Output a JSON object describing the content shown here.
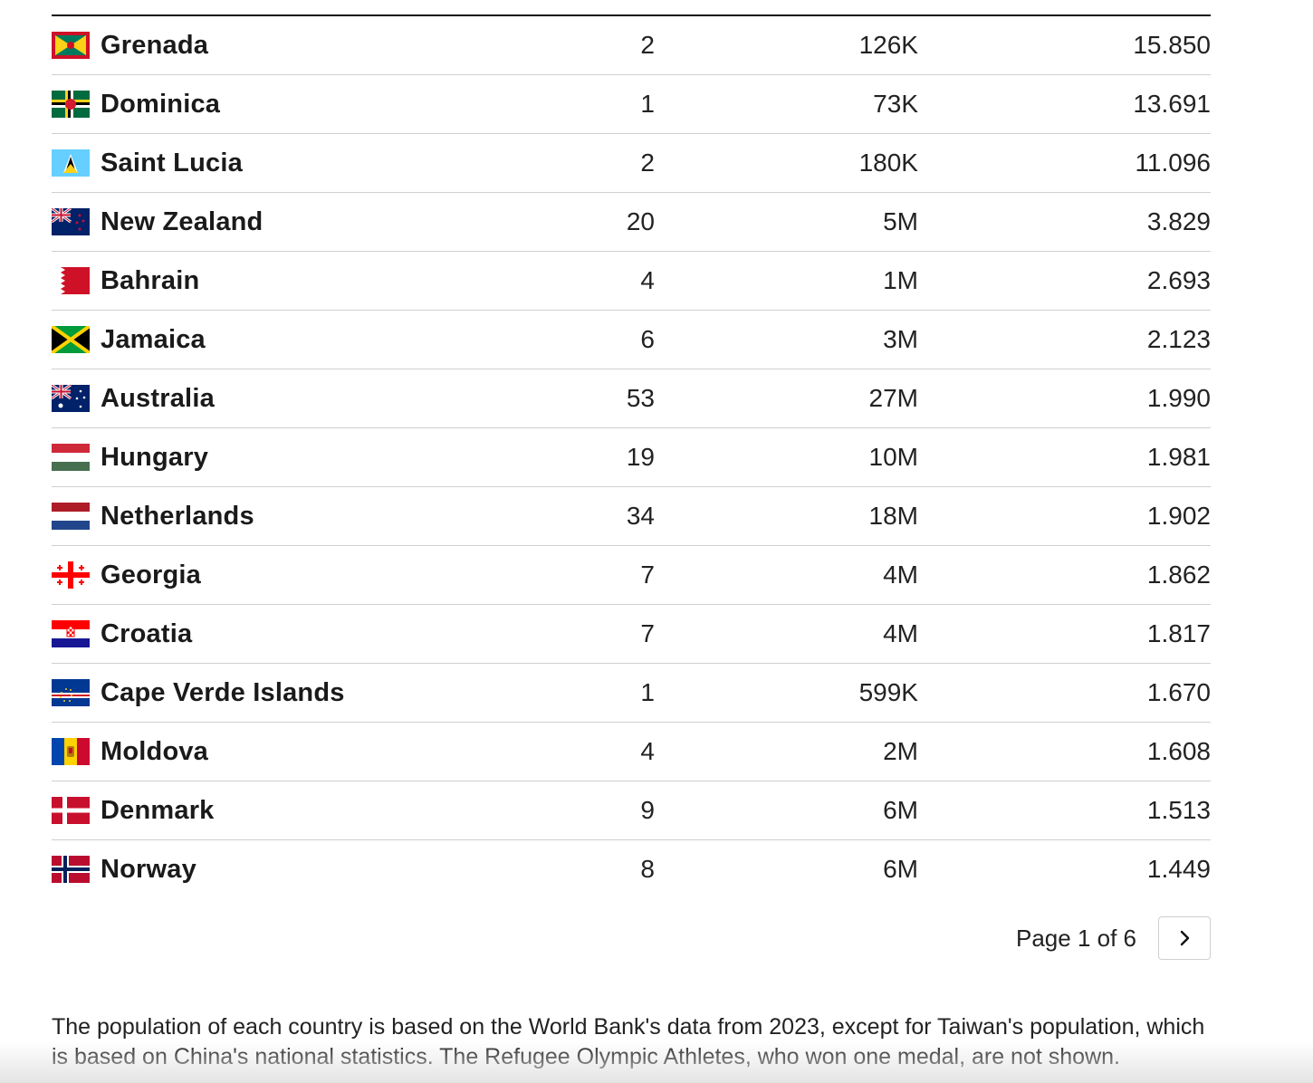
{
  "rows": [
    {
      "country": "Grenada",
      "flag": "grenada-flag-icon",
      "medals": "2",
      "population": "126K",
      "ratio": "15.850"
    },
    {
      "country": "Dominica",
      "flag": "dominica-flag-icon",
      "medals": "1",
      "population": "73K",
      "ratio": "13.691"
    },
    {
      "country": "Saint Lucia",
      "flag": "saint-lucia-flag-icon",
      "medals": "2",
      "population": "180K",
      "ratio": "11.096"
    },
    {
      "country": "New Zealand",
      "flag": "new-zealand-flag-icon",
      "medals": "20",
      "population": "5M",
      "ratio": "3.829"
    },
    {
      "country": "Bahrain",
      "flag": "bahrain-flag-icon",
      "medals": "4",
      "population": "1M",
      "ratio": "2.693"
    },
    {
      "country": "Jamaica",
      "flag": "jamaica-flag-icon",
      "medals": "6",
      "population": "3M",
      "ratio": "2.123"
    },
    {
      "country": "Australia",
      "flag": "australia-flag-icon",
      "medals": "53",
      "population": "27M",
      "ratio": "1.990"
    },
    {
      "country": "Hungary",
      "flag": "hungary-flag-icon",
      "medals": "19",
      "population": "10M",
      "ratio": "1.981"
    },
    {
      "country": "Netherlands",
      "flag": "netherlands-flag-icon",
      "medals": "34",
      "population": "18M",
      "ratio": "1.902"
    },
    {
      "country": "Georgia",
      "flag": "georgia-flag-icon",
      "medals": "7",
      "population": "4M",
      "ratio": "1.862"
    },
    {
      "country": "Croatia",
      "flag": "croatia-flag-icon",
      "medals": "7",
      "population": "4M",
      "ratio": "1.817"
    },
    {
      "country": "Cape Verde Islands",
      "flag": "cape-verde-flag-icon",
      "medals": "1",
      "population": "599K",
      "ratio": "1.670"
    },
    {
      "country": "Moldova",
      "flag": "moldova-flag-icon",
      "medals": "4",
      "population": "2M",
      "ratio": "1.608"
    },
    {
      "country": "Denmark",
      "flag": "denmark-flag-icon",
      "medals": "9",
      "population": "6M",
      "ratio": "1.513"
    },
    {
      "country": "Norway",
      "flag": "norway-flag-icon",
      "medals": "8",
      "population": "6M",
      "ratio": "1.449"
    }
  ],
  "pagination": {
    "label": "Page 1 of 6",
    "next_icon": "chevron-right-icon"
  },
  "footnote": "The population of each country is based on the World Bank's data from 2023, except for Taiwan's population, which is based on China's national statistics. The Refugee Olympic Athletes, who won one medal, are not shown."
}
